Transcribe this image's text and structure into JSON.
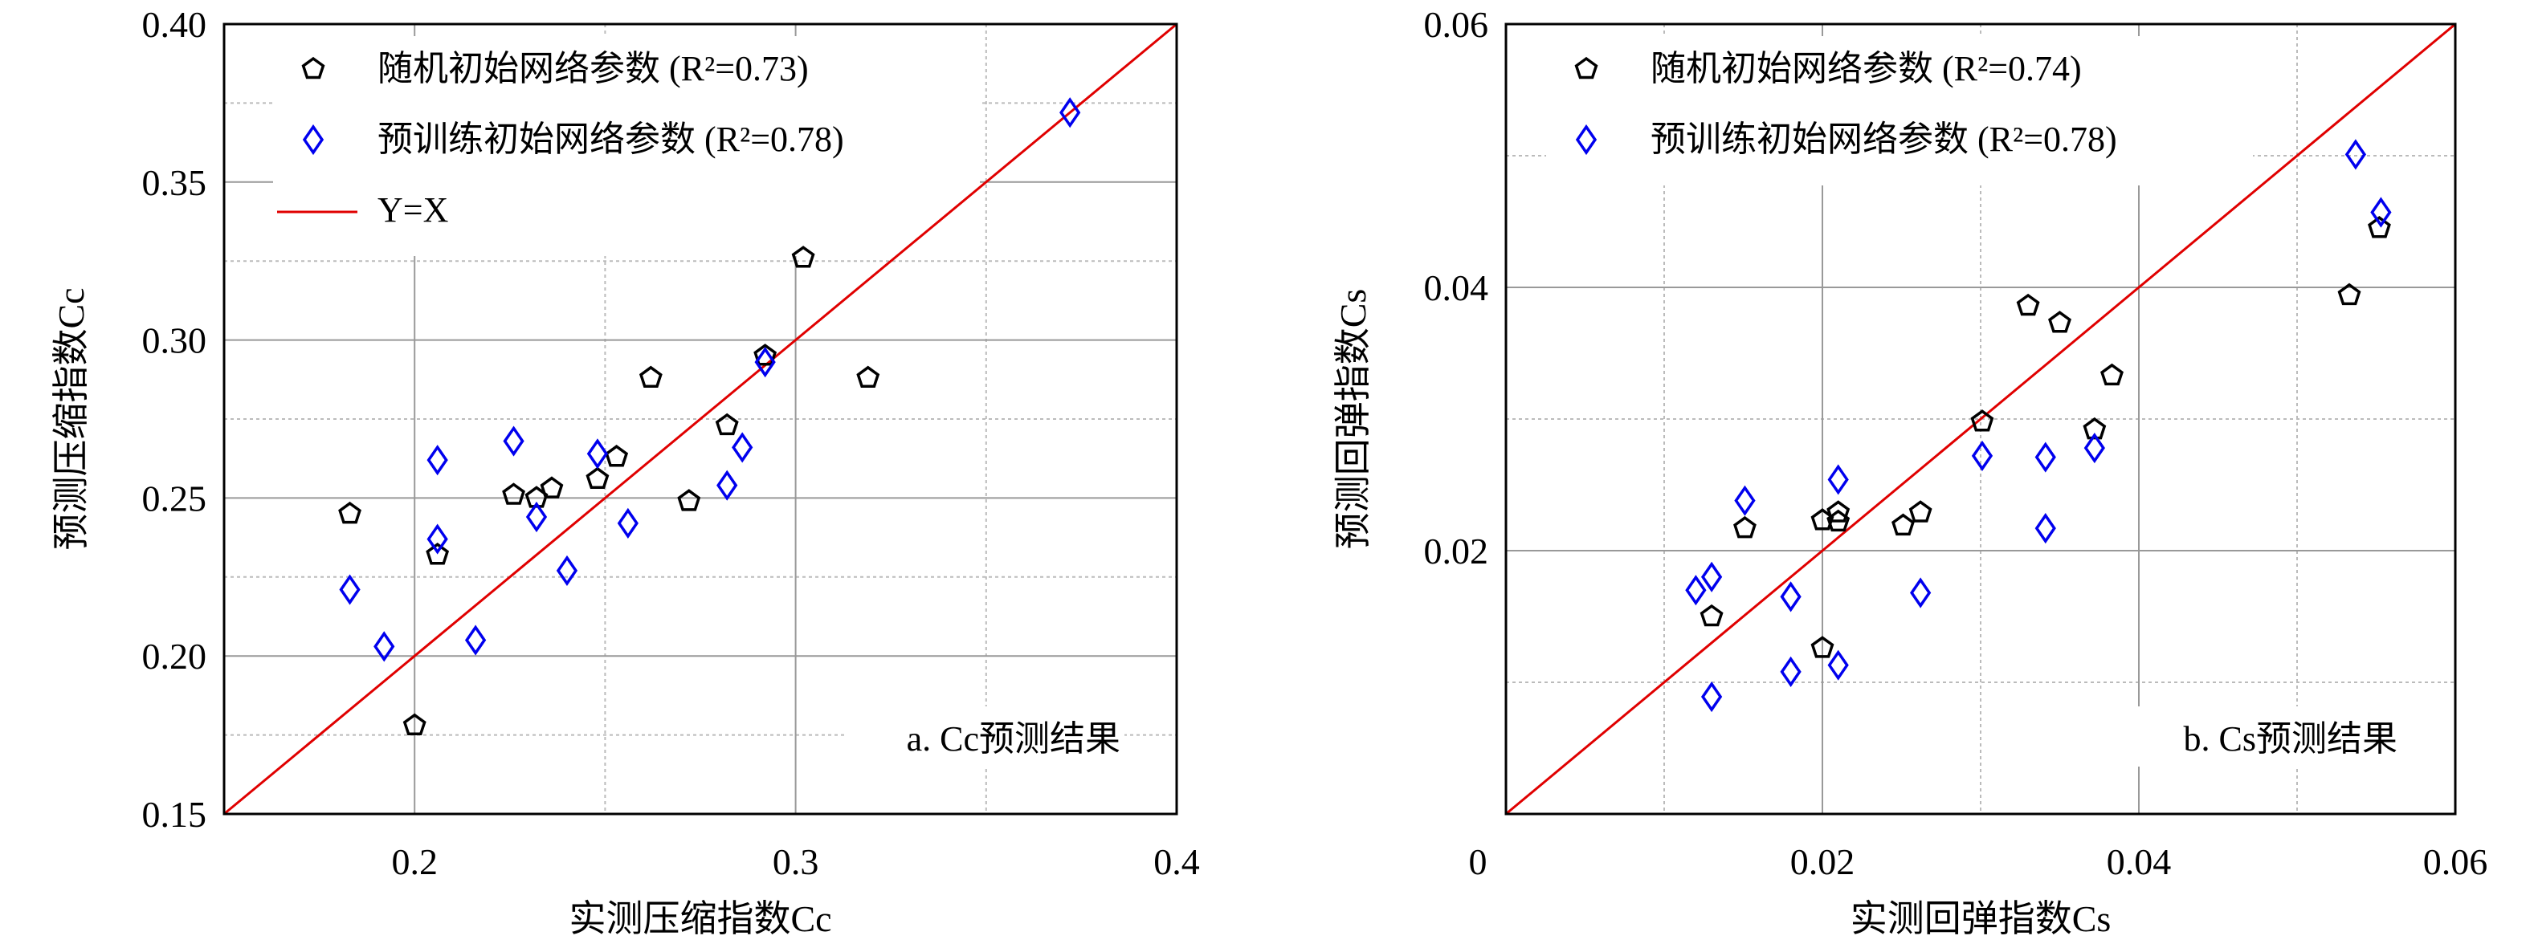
{
  "chart_data": [
    {
      "type": "scatter",
      "id": "cc",
      "panel_label": "a. Cc预测结果",
      "xlabel": "实测压缩指数Cc",
      "ylabel": "预测压缩指数Cc",
      "xlim": [
        0.15,
        0.4
      ],
      "ylim": [
        0.15,
        0.4
      ],
      "xticks": [
        0.2,
        0.3,
        0.4
      ],
      "xtick_labels": [
        "0.2",
        "0.3",
        "0.4"
      ],
      "xminor": [
        0.25,
        0.35
      ],
      "yticks": [
        0.15,
        0.2,
        0.25,
        0.3,
        0.35,
        0.4
      ],
      "ytick_labels": [
        "0.15",
        "0.20",
        "0.25",
        "0.30",
        "0.35",
        "0.40"
      ],
      "yminor": [
        0.175,
        0.225,
        0.275,
        0.325,
        0.375
      ],
      "grid": true,
      "legend_placement": "top-left",
      "series": [
        {
          "name": "随机初始网络参数 (R²=0.73)",
          "marker": "pentagon",
          "color": "#000000",
          "x": [
            0.183,
            0.206,
            0.2,
            0.226,
            0.232,
            0.236,
            0.248,
            0.253,
            0.262,
            0.272,
            0.282,
            0.292,
            0.302,
            0.319
          ],
          "y": [
            0.245,
            0.232,
            0.178,
            0.251,
            0.25,
            0.253,
            0.256,
            0.263,
            0.288,
            0.249,
            0.273,
            0.295,
            0.326,
            0.288
          ]
        },
        {
          "name": "预训练初始网络参数 (R²=0.78)",
          "marker": "diamond",
          "color": "#0000ee",
          "x": [
            0.183,
            0.192,
            0.206,
            0.206,
            0.216,
            0.226,
            0.232,
            0.24,
            0.248,
            0.256,
            0.282,
            0.286,
            0.292,
            0.372
          ],
          "y": [
            0.221,
            0.203,
            0.262,
            0.237,
            0.205,
            0.268,
            0.244,
            0.227,
            0.264,
            0.242,
            0.254,
            0.266,
            0.293,
            0.372
          ]
        },
        {
          "name": "Y=X",
          "marker": "line",
          "color": "#e00000"
        }
      ]
    },
    {
      "type": "scatter",
      "id": "cs",
      "panel_label": "b. Cs预测结果",
      "xlabel": "实测回弹指数Cs",
      "ylabel": "预测回弹指数Cs",
      "xlim": [
        0,
        0.06
      ],
      "ylim": [
        0,
        0.06
      ],
      "xticks": [
        0,
        0.02,
        0.04,
        0.06
      ],
      "xtick_labels": [
        "0",
        "0.02",
        "0.04",
        "0.06"
      ],
      "xminor": [
        0.01,
        0.03,
        0.05
      ],
      "yticks": [
        0.02,
        0.04,
        0.06
      ],
      "ytick_labels": [
        "0.02",
        "0.04",
        "0.06"
      ],
      "yminor": [
        0.01,
        0.03,
        0.05
      ],
      "grid": true,
      "legend_placement": "top-left",
      "series": [
        {
          "name": "随机初始网络参数 (R²=0.74)",
          "marker": "pentagon",
          "color": "#000000",
          "x": [
            0.013,
            0.0151,
            0.02,
            0.02,
            0.021,
            0.021,
            0.0251,
            0.0262,
            0.0301,
            0.033,
            0.035,
            0.0372,
            0.0383,
            0.0533,
            0.0552
          ],
          "y": [
            0.015,
            0.0217,
            0.0223,
            0.0126,
            0.0229,
            0.0222,
            0.0219,
            0.0229,
            0.0298,
            0.0386,
            0.0373,
            0.0292,
            0.0333,
            0.0394,
            0.0445
          ]
        },
        {
          "name": "预训练初始网络参数 (R²=0.78)",
          "marker": "diamond",
          "color": "#0000ee",
          "x": [
            0.012,
            0.013,
            0.013,
            0.0151,
            0.018,
            0.018,
            0.021,
            0.021,
            0.0262,
            0.0301,
            0.0341,
            0.0341,
            0.0372,
            0.0537,
            0.0553
          ],
          "y": [
            0.017,
            0.018,
            0.0089,
            0.0238,
            0.0165,
            0.0108,
            0.0254,
            0.0113,
            0.0168,
            0.0272,
            0.0271,
            0.0217,
            0.0278,
            0.0501,
            0.0457
          ]
        },
        {
          "name": "Y=X",
          "marker": "line",
          "color": "#e00000",
          "hidden_in_legend": true
        }
      ]
    }
  ]
}
